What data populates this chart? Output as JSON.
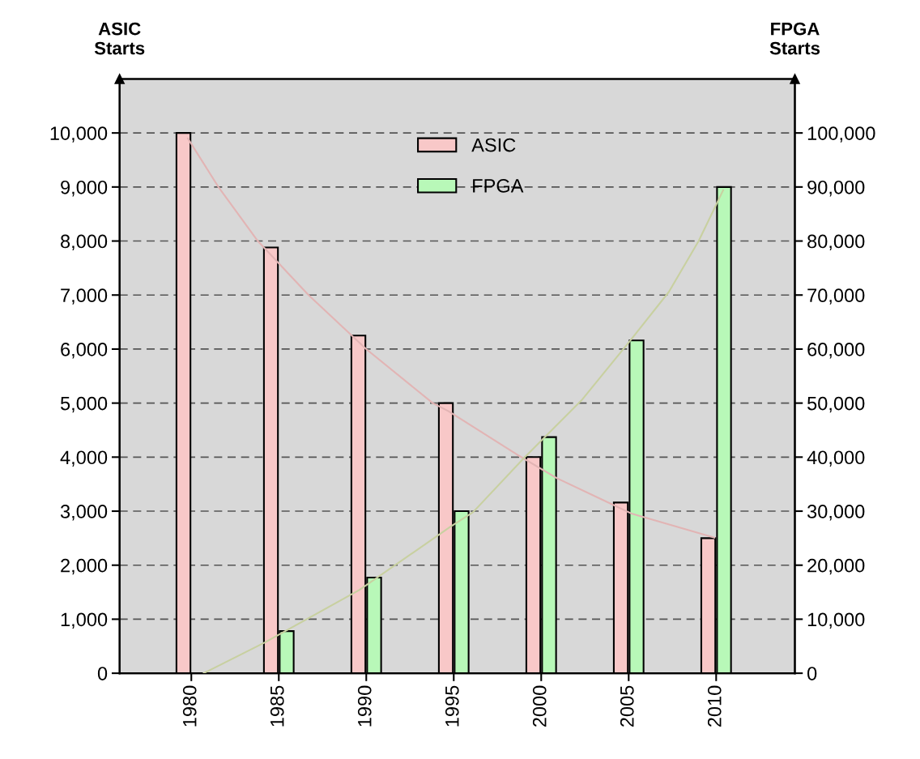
{
  "chart_data": {
    "type": "bar",
    "ylabel": "ASIC\nStarts",
    "y2label": "FPGA\nStarts",
    "x": [
      1980,
      1985,
      1990,
      1995,
      2000,
      2005,
      2010
    ],
    "series": [
      {
        "name": "ASIC",
        "color": "#f8c8c8",
        "values": [
          10000,
          7880,
          6250,
          5000,
          4000,
          3160,
          2500
        ]
      },
      {
        "name": "FPGA",
        "axis": "y2",
        "color": "#b8f8b8",
        "values": [
          null,
          7800,
          17700,
          30000,
          43700,
          61600,
          90000
        ]
      },
      {
        "type": "line",
        "color": "#e2b4b4",
        "x": [
          1979.8,
          1981.55,
          1983.8,
          1986.7,
          1990.0,
          1993.8,
          1994.7,
          1998.6,
          2000.9,
          2005.2,
          2009.9
        ],
        "values": [
          9900,
          9000,
          8000,
          7000,
          6000,
          5000,
          4850,
          4050,
          3610,
          2950,
          2510
        ]
      },
      {
        "type": "line",
        "axis": "y2",
        "color": "#c8d0a0",
        "x": [
          1980.7,
          1984.2,
          1989.6,
          1994.8,
          1996.1,
          1999.0,
          2002.3,
          2005.0,
          2007.3,
          2009.0,
          2010.4
        ],
        "values": [
          0,
          5700,
          15400,
          27100,
          29800,
          39800,
          50500,
          61200,
          70600,
          80000,
          89400
        ]
      }
    ],
    "xlim": [
      1975.9,
      2014.5
    ],
    "xticks": [
      1980,
      1985,
      1990,
      1995,
      2000,
      2005,
      2010
    ],
    "ylim": [
      0,
      11000
    ],
    "yticks": [
      {
        "value": 0,
        "label": "0"
      },
      {
        "value": 1000,
        "label": "1,000"
      },
      {
        "value": 2000,
        "label": "2,000"
      },
      {
        "value": 3000,
        "label": "3,000"
      },
      {
        "value": 4000,
        "label": "4,000"
      },
      {
        "value": 5000,
        "label": "5,000"
      },
      {
        "value": 6000,
        "label": "6,000"
      },
      {
        "value": 7000,
        "label": "7,000"
      },
      {
        "value": 8000,
        "label": "8,000"
      },
      {
        "value": 9000,
        "label": "9,000"
      },
      {
        "value": 10000,
        "label": "10,000"
      }
    ],
    "y2lim": [
      0,
      110000
    ],
    "y2ticks": [
      {
        "value": 0,
        "label": "0"
      },
      {
        "value": 10000,
        "label": "10,000"
      },
      {
        "value": 20000,
        "label": "20,000"
      },
      {
        "value": 30000,
        "label": "30,000"
      },
      {
        "value": 40000,
        "label": "40,000"
      },
      {
        "value": 50000,
        "label": "50,000"
      },
      {
        "value": 60000,
        "label": "60,000"
      },
      {
        "value": 70000,
        "label": "70,000"
      },
      {
        "value": 80000,
        "label": "80,000"
      },
      {
        "value": 90000,
        "label": "90,000"
      },
      {
        "value": 100000,
        "label": "100,000"
      }
    ],
    "grid": "y",
    "legend": "top"
  }
}
